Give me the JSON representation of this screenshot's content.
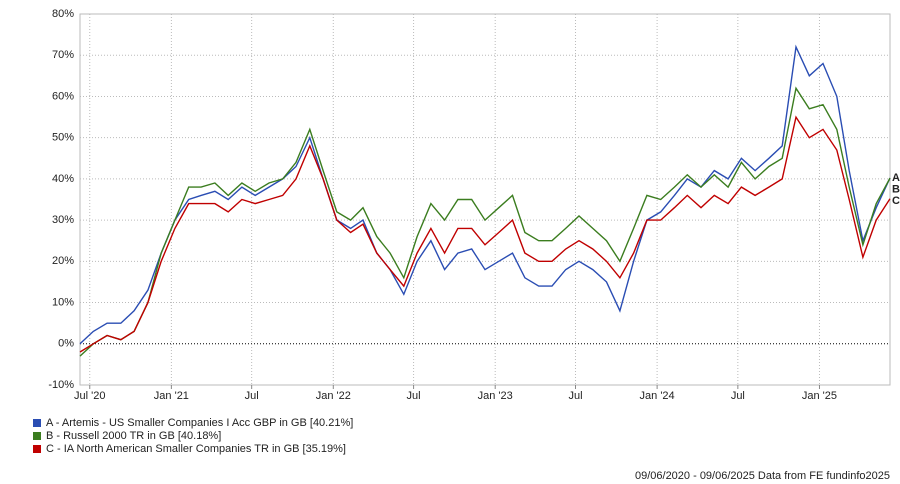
{
  "chart_data": {
    "type": "line",
    "x": [
      "2020-06-09",
      "2020-07-09",
      "2020-08-09",
      "2020-09-09",
      "2020-10-09",
      "2020-11-09",
      "2020-12-09",
      "2021-01-09",
      "2021-02-09",
      "2021-03-09",
      "2021-04-09",
      "2021-05-09",
      "2021-06-09",
      "2021-07-09",
      "2021-08-09",
      "2021-09-09",
      "2021-10-09",
      "2021-11-09",
      "2021-12-09",
      "2022-01-09",
      "2022-02-09",
      "2022-03-09",
      "2022-04-09",
      "2022-05-09",
      "2022-06-09",
      "2022-07-09",
      "2022-08-09",
      "2022-09-09",
      "2022-10-09",
      "2022-11-09",
      "2022-12-09",
      "2023-01-09",
      "2023-02-09",
      "2023-03-09",
      "2023-04-09",
      "2023-05-09",
      "2023-06-09",
      "2023-07-09",
      "2023-08-09",
      "2023-09-09",
      "2023-10-09",
      "2023-11-09",
      "2023-12-09",
      "2024-01-09",
      "2024-02-09",
      "2024-03-09",
      "2024-04-09",
      "2024-05-09",
      "2024-06-09",
      "2024-07-09",
      "2024-08-09",
      "2024-09-09",
      "2024-10-09",
      "2024-11-09",
      "2024-12-09",
      "2025-01-09",
      "2025-02-09",
      "2025-03-09",
      "2025-04-09",
      "2025-05-09",
      "2025-06-09"
    ],
    "series": [
      {
        "name": "A - Artemis - US Smaller Companies I Acc GBP in GB [40.21%]",
        "tag": "A",
        "color": "#2a4db3",
        "values": [
          0,
          3,
          5,
          5,
          8,
          13,
          22,
          30,
          35,
          36,
          37,
          35,
          38,
          36,
          38,
          40,
          43,
          50,
          40,
          30,
          28,
          30,
          22,
          18,
          12,
          20,
          25,
          18,
          22,
          23,
          18,
          20,
          22,
          16,
          14,
          14,
          18,
          20,
          18,
          15,
          8,
          20,
          30,
          32,
          36,
          40,
          38,
          42,
          40,
          45,
          42,
          45,
          48,
          72,
          65,
          68,
          60,
          42,
          25,
          33,
          40.21
        ]
      },
      {
        "name": "B - Russell 2000 TR in GB [40.18%]",
        "tag": "B",
        "color": "#3b7d1f",
        "values": [
          -3,
          0,
          2,
          1,
          3,
          10,
          22,
          30,
          38,
          38,
          39,
          36,
          39,
          37,
          39,
          40,
          44,
          52,
          42,
          32,
          30,
          33,
          26,
          22,
          16,
          26,
          34,
          30,
          35,
          35,
          30,
          33,
          36,
          27,
          25,
          25,
          28,
          31,
          28,
          25,
          20,
          28,
          36,
          35,
          38,
          41,
          38,
          41,
          38,
          44,
          40,
          43,
          45,
          62,
          57,
          58,
          52,
          38,
          24,
          34,
          40.18
        ]
      },
      {
        "name": "C - IA North American Smaller Companies TR in GB [35.19%]",
        "tag": "C",
        "color": "#c00000",
        "values": [
          -2,
          0,
          2,
          1,
          3,
          10,
          20,
          28,
          34,
          34,
          34,
          32,
          35,
          34,
          35,
          36,
          40,
          48,
          40,
          30,
          27,
          29,
          22,
          18,
          14,
          22,
          28,
          22,
          28,
          28,
          24,
          27,
          30,
          22,
          20,
          20,
          23,
          25,
          23,
          20,
          16,
          22,
          30,
          30,
          33,
          36,
          33,
          36,
          34,
          38,
          36,
          38,
          40,
          55,
          50,
          52,
          47,
          35,
          21,
          30,
          35.19
        ]
      }
    ],
    "xlim": [
      "2020-06-09",
      "2025-06-09"
    ],
    "xticks": [
      {
        "value": "2020-07-01",
        "label": "Jul '20"
      },
      {
        "value": "2021-01-01",
        "label": "Jan '21"
      },
      {
        "value": "2021-07-01",
        "label": "Jul"
      },
      {
        "value": "2022-01-01",
        "label": "Jan '22"
      },
      {
        "value": "2022-07-01",
        "label": "Jul"
      },
      {
        "value": "2023-01-01",
        "label": "Jan '23"
      },
      {
        "value": "2023-07-01",
        "label": "Jul"
      },
      {
        "value": "2024-01-01",
        "label": "Jan '24"
      },
      {
        "value": "2024-07-01",
        "label": "Jul"
      },
      {
        "value": "2025-01-01",
        "label": "Jan '25"
      }
    ],
    "ylim": [
      -10,
      80
    ],
    "yticks": [
      {
        "value": -10,
        "label": "-10%"
      },
      {
        "value": 0,
        "label": "0%"
      },
      {
        "value": 10,
        "label": "10%"
      },
      {
        "value": 20,
        "label": "20%"
      },
      {
        "value": 30,
        "label": "30%"
      },
      {
        "value": 40,
        "label": "40%"
      },
      {
        "value": 50,
        "label": "50%"
      },
      {
        "value": 60,
        "label": "60%"
      },
      {
        "value": 70,
        "label": "70%"
      },
      {
        "value": 80,
        "label": "80%"
      }
    ],
    "grid": true,
    "footer": "09/06/2020 - 09/06/2025 Data from FE fundinfo2025"
  }
}
